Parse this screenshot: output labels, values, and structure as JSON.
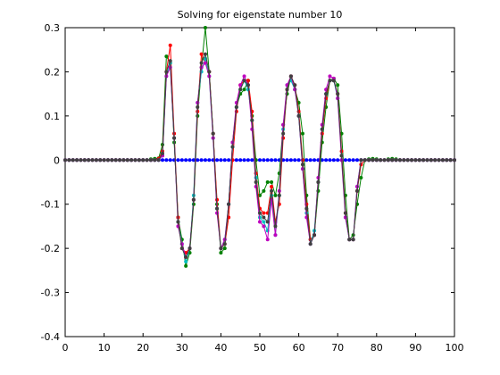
{
  "chart_data": {
    "type": "line",
    "title": "Solving for eigenstate number 10",
    "xlabel": "",
    "ylabel": "",
    "xlim": [
      0,
      100
    ],
    "ylim": [
      -0.4,
      0.3
    ],
    "xticks": [
      0,
      10,
      20,
      30,
      40,
      50,
      60,
      70,
      80,
      90,
      100
    ],
    "yticks": [
      -0.4,
      -0.3,
      -0.2,
      -0.1,
      0,
      0.1,
      0.2,
      0.3
    ],
    "xtick_labels": [
      "0",
      "10",
      "20",
      "30",
      "40",
      "50",
      "60",
      "70",
      "80",
      "90",
      "100"
    ],
    "ytick_labels": [
      "-0.4",
      "-0.3",
      "-0.2",
      "-0.1",
      "0",
      "0.1",
      "0.2",
      "0.3"
    ],
    "grid": false,
    "legend": "none",
    "x": [
      0,
      1,
      2,
      3,
      4,
      5,
      6,
      7,
      8,
      9,
      10,
      11,
      12,
      13,
      14,
      15,
      16,
      17,
      18,
      19,
      20,
      21,
      22,
      23,
      24,
      25,
      26,
      27,
      28,
      29,
      30,
      31,
      32,
      33,
      34,
      35,
      36,
      37,
      38,
      39,
      40,
      41,
      42,
      43,
      44,
      45,
      46,
      47,
      48,
      49,
      50,
      51,
      52,
      53,
      54,
      55,
      56,
      57,
      58,
      59,
      60,
      61,
      62,
      63,
      64,
      65,
      66,
      67,
      68,
      69,
      70,
      71,
      72,
      73,
      74,
      75,
      76,
      77,
      78,
      79,
      80,
      81,
      82,
      83,
      84,
      85,
      86,
      87,
      88,
      89,
      90,
      91,
      92,
      93,
      94,
      95,
      96,
      97,
      98,
      99,
      100
    ],
    "series": [
      {
        "color": "#0000ff",
        "marker": "dot",
        "values": [
          0,
          0,
          0,
          0,
          0,
          0,
          0,
          0,
          0,
          0,
          0,
          0,
          0,
          0,
          0,
          0,
          0,
          0,
          0,
          0,
          0,
          0,
          0,
          0,
          0,
          0,
          0,
          0,
          0,
          0,
          0,
          0,
          0,
          0,
          0,
          0,
          0,
          0,
          0,
          0,
          0,
          0,
          0,
          0,
          0,
          0,
          0,
          0,
          0,
          0,
          0,
          0,
          0,
          0,
          0,
          0,
          0,
          0,
          0,
          0,
          0,
          0,
          0,
          0,
          0,
          0,
          0,
          0,
          0,
          0,
          0,
          0,
          0,
          0,
          0,
          0,
          0,
          0,
          0,
          0,
          0,
          0,
          0,
          0,
          0,
          0,
          0,
          0,
          0,
          0,
          0,
          0,
          0,
          0,
          0,
          0,
          0,
          0,
          0,
          0,
          0
        ]
      },
      {
        "color": "#008000",
        "marker": "dot",
        "values": [
          0,
          0,
          0,
          0,
          0,
          0,
          0,
          0,
          0,
          0,
          0,
          0,
          0,
          0,
          0,
          0,
          0,
          0,
          0,
          0,
          0,
          0,
          0.002,
          0.003,
          0.004,
          0.035,
          0.235,
          0.22,
          0.04,
          -0.13,
          -0.18,
          -0.24,
          -0.21,
          -0.1,
          0.1,
          0.21,
          0.3,
          0.2,
          0.06,
          -0.1,
          -0.21,
          -0.2,
          -0.1,
          0.04,
          0.12,
          0.15,
          0.16,
          0.18,
          0.1,
          0.0,
          -0.08,
          -0.07,
          -0.05,
          -0.05,
          -0.08,
          -0.03,
          0.08,
          0.15,
          0.19,
          0.16,
          0.13,
          0.06,
          -0.08,
          -0.18,
          -0.17,
          -0.07,
          0.04,
          0.12,
          0.18,
          0.185,
          0.17,
          0.06,
          -0.08,
          -0.18,
          -0.17,
          -0.1,
          -0.04,
          0.0,
          0.002,
          0.003,
          0.002,
          0,
          0,
          0.002,
          0.003,
          0.002,
          0,
          0,
          0,
          0,
          0,
          0,
          0,
          0,
          0,
          0,
          0,
          0,
          0,
          0,
          0
        ]
      },
      {
        "color": "#ff0000",
        "marker": "dot",
        "values": [
          0,
          0,
          0,
          0,
          0,
          0,
          0,
          0,
          0,
          0,
          0,
          0,
          0,
          0,
          0,
          0,
          0,
          0,
          0,
          0,
          0,
          0,
          0,
          0,
          0.003,
          0.02,
          0.2,
          0.26,
          0.06,
          -0.13,
          -0.2,
          -0.21,
          -0.2,
          -0.09,
          0.11,
          0.24,
          0.22,
          0.2,
          0.06,
          -0.09,
          -0.2,
          -0.19,
          -0.13,
          0.0,
          0.11,
          0.17,
          0.18,
          0.18,
          0.11,
          -0.03,
          -0.11,
          -0.12,
          -0.12,
          -0.06,
          -0.14,
          -0.1,
          0.05,
          0.16,
          0.19,
          0.17,
          0.11,
          0.0,
          -0.1,
          -0.18,
          -0.17,
          -0.05,
          0.06,
          0.14,
          0.18,
          0.18,
          0.15,
          0.02,
          -0.12,
          -0.18,
          -0.18,
          -0.07,
          -0.01,
          0.0,
          0,
          0,
          0,
          0,
          0,
          0,
          0,
          0,
          0,
          0,
          0,
          0,
          0,
          0,
          0,
          0,
          0,
          0,
          0,
          0,
          0,
          0,
          0
        ]
      },
      {
        "color": "#00bfbf",
        "marker": "dot",
        "values": [
          0,
          0,
          0,
          0,
          0,
          0,
          0,
          0,
          0,
          0,
          0,
          0,
          0,
          0,
          0,
          0,
          0,
          0,
          0,
          0,
          0,
          0,
          0,
          0,
          0,
          0.01,
          0.19,
          0.22,
          0.05,
          -0.14,
          -0.19,
          -0.23,
          -0.2,
          -0.08,
          0.13,
          0.2,
          0.23,
          0.19,
          0.05,
          -0.11,
          -0.2,
          -0.18,
          -0.1,
          0.03,
          0.12,
          0.16,
          0.18,
          0.16,
          0.09,
          -0.04,
          -0.13,
          -0.14,
          -0.16,
          -0.08,
          -0.17,
          -0.08,
          0.07,
          0.17,
          0.18,
          0.16,
          0.1,
          -0.02,
          -0.12,
          -0.19,
          -0.16,
          -0.05,
          0.07,
          0.15,
          0.18,
          0.18,
          0.14,
          0.01,
          -0.13,
          -0.18,
          -0.18,
          -0.06,
          0,
          0,
          0,
          0,
          0,
          0,
          0,
          0,
          0,
          0,
          0,
          0,
          0,
          0,
          0,
          0,
          0,
          0,
          0,
          0,
          0,
          0,
          0,
          0,
          0
        ]
      },
      {
        "color": "#bf00bf",
        "marker": "dot",
        "values": [
          0,
          0,
          0,
          0,
          0,
          0,
          0,
          0,
          0,
          0,
          0,
          0,
          0,
          0,
          0,
          0,
          0,
          0,
          0,
          0,
          0,
          0,
          0,
          0,
          0,
          0.01,
          0.19,
          0.21,
          0.05,
          -0.15,
          -0.19,
          -0.22,
          -0.2,
          -0.09,
          0.13,
          0.21,
          0.22,
          0.19,
          0.05,
          -0.12,
          -0.2,
          -0.18,
          -0.1,
          0.04,
          0.13,
          0.17,
          0.19,
          0.17,
          0.07,
          -0.06,
          -0.14,
          -0.15,
          -0.18,
          -0.09,
          -0.17,
          -0.07,
          0.08,
          0.17,
          0.19,
          0.16,
          0.1,
          -0.02,
          -0.13,
          -0.19,
          -0.17,
          -0.04,
          0.08,
          0.16,
          0.19,
          0.185,
          0.14,
          0.0,
          -0.13,
          -0.18,
          -0.18,
          -0.06,
          0,
          0,
          0,
          0,
          0,
          0,
          0,
          0,
          0,
          0,
          0,
          0,
          0,
          0,
          0,
          0,
          0,
          0,
          0,
          0,
          0,
          0,
          0,
          0,
          0
        ]
      },
      {
        "color": "#404040",
        "marker": "dot",
        "values": [
          0,
          0,
          0,
          0,
          0,
          0,
          0,
          0,
          0,
          0,
          0,
          0,
          0,
          0,
          0,
          0,
          0,
          0,
          0,
          0,
          0,
          0,
          0,
          0,
          0,
          0.015,
          0.2,
          0.225,
          0.05,
          -0.14,
          -0.2,
          -0.22,
          -0.2,
          -0.09,
          0.12,
          0.22,
          0.24,
          0.2,
          0.06,
          -0.11,
          -0.2,
          -0.19,
          -0.1,
          0.03,
          0.12,
          0.16,
          0.18,
          0.17,
          0.09,
          -0.05,
          -0.12,
          -0.13,
          -0.14,
          -0.07,
          -0.15,
          -0.08,
          0.06,
          0.16,
          0.19,
          0.17,
          0.1,
          -0.01,
          -0.11,
          -0.19,
          -0.17,
          -0.05,
          0.07,
          0.15,
          0.18,
          0.18,
          0.15,
          0.01,
          -0.12,
          -0.18,
          -0.18,
          -0.07,
          0,
          0,
          0,
          0,
          0,
          0,
          0,
          0,
          0,
          0,
          0,
          0,
          0,
          0,
          0,
          0,
          0,
          0,
          0,
          0,
          0,
          0,
          0,
          0,
          0
        ]
      }
    ]
  }
}
